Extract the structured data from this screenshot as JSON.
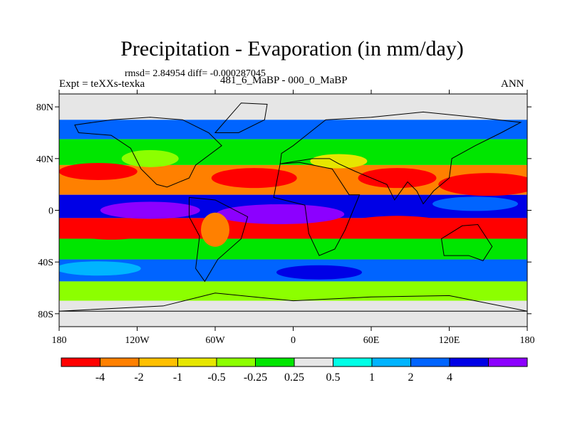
{
  "header": {
    "title": "Precipitation - Evaporation (in mm/day)",
    "stats": "rmsd= 2.84954 diff= -0.000287045",
    "experiment": "Expt = teXXs-texka",
    "period": "481_6_MaBP - 000_0_MaBP",
    "season": "ANN"
  },
  "axes": {
    "y_ticks": [
      {
        "label": "80N",
        "lat": 80
      },
      {
        "label": "40N",
        "lat": 40
      },
      {
        "label": "0",
        "lat": 0
      },
      {
        "label": "40S",
        "lat": -40
      },
      {
        "label": "80S",
        "lat": -80
      }
    ],
    "x_ticks": [
      {
        "label": "180",
        "lon": -180
      },
      {
        "label": "120W",
        "lon": -120
      },
      {
        "label": "60W",
        "lon": -60
      },
      {
        "label": "0",
        "lon": 0
      },
      {
        "label": "60E",
        "lon": 60
      },
      {
        "label": "120E",
        "lon": 120
      },
      {
        "label": "180",
        "lon": 180
      }
    ],
    "lon_range": [
      -180,
      180
    ],
    "lat_range": [
      -90,
      90
    ]
  },
  "legend": {
    "colors": [
      "#ff0000",
      "#ff8000",
      "#ffc000",
      "#e6e600",
      "#8cff00",
      "#00e600",
      "#e6e6e6",
      "#00ffe6",
      "#00b4ff",
      "#0064ff",
      "#0000e6",
      "#8c00ff"
    ],
    "labels": [
      "-4",
      "-2",
      "-1",
      "-0.5",
      "-0.25",
      "0.25",
      "0.5",
      "1",
      "2",
      "4"
    ],
    "label_positions": [
      1,
      2,
      3,
      4,
      5,
      6,
      7,
      8,
      9,
      10
    ]
  },
  "colors": {
    "missing": "#e6e6e6",
    "coastline": "#000000"
  }
}
